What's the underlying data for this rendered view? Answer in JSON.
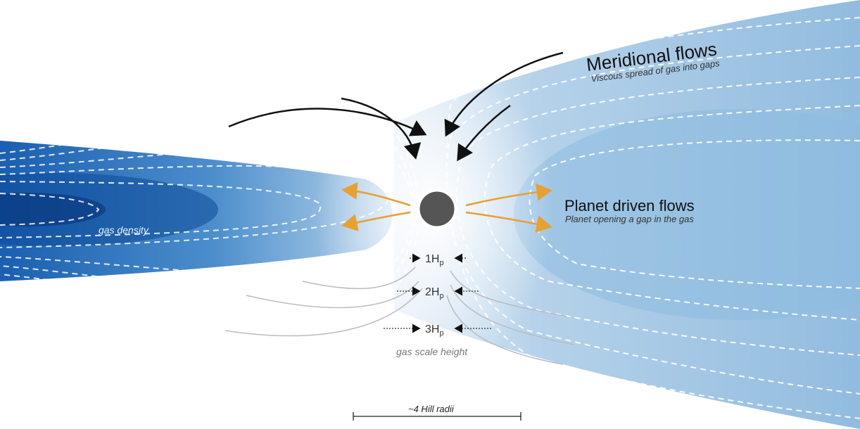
{
  "meridional": {
    "title": "Meridional flows",
    "subtitle": "Viscous spread of gas into gaps"
  },
  "planet_driven": {
    "title": "Planet driven flows",
    "subtitle": "Planet opening a gap in the gas"
  },
  "gas_density_label": "gas density",
  "scale_heights": [
    {
      "num": "1H",
      "sub": "p"
    },
    {
      "num": "2H",
      "sub": "p"
    },
    {
      "num": "3H",
      "sub": "p"
    }
  ],
  "gas_scale_height_label": "gas scale height",
  "scale_bar_label": "~4 Hill radii",
  "colors": {
    "disk_dark": "#0d4a99",
    "disk_light": "#dce9f5",
    "planet_flow_arrow": "#e8a030",
    "meridional_arrow": "#111111",
    "planet": "#555555"
  }
}
